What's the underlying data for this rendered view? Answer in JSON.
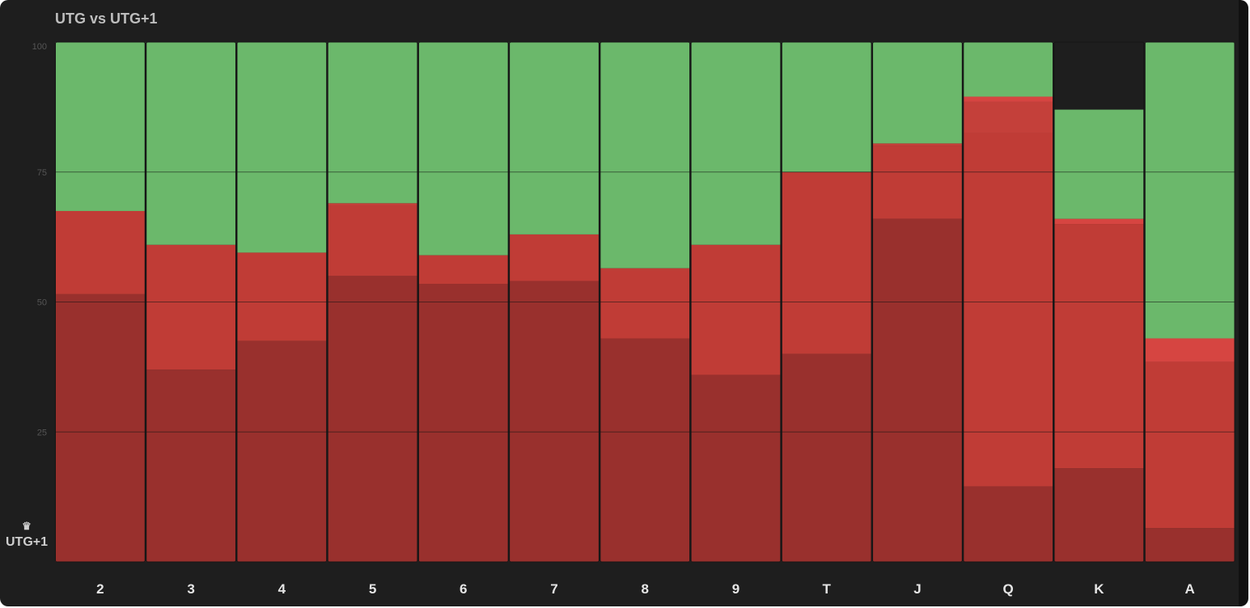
{
  "title": "UTG vs UTG+1",
  "player_label": "UTG+1",
  "icons": {
    "player_marker": "crown-icon"
  },
  "colors": {
    "background": "#1e1e1e",
    "fold": "#6bb86b",
    "call": "#c03c36",
    "raise_small": "#d64541",
    "raise_allin": "#99302d",
    "grid": "#2c2c2c"
  },
  "chart_data": {
    "type": "bar",
    "stacked": true,
    "categories": [
      "2",
      "3",
      "4",
      "5",
      "6",
      "7",
      "8",
      "9",
      "T",
      "J",
      "Q",
      "K",
      "A"
    ],
    "ylim": [
      0,
      100
    ],
    "yticks": [
      25,
      50,
      75,
      100
    ],
    "grid": true,
    "series": [
      {
        "values": [
          51.5,
          37,
          42.5,
          55,
          53.5,
          54,
          43,
          36,
          40,
          66,
          14.5,
          18,
          6.5
        ]
      },
      {
        "values": [
          16,
          24,
          17,
          13.5,
          5.5,
          9,
          13.5,
          25,
          35,
          14,
          68,
          47,
          32
        ]
      },
      {
        "values": [
          0,
          0,
          0,
          0.5,
          0,
          0,
          0,
          0,
          0,
          0.5,
          6,
          0,
          0
        ]
      },
      {
        "values": [
          0,
          0,
          0,
          0,
          0,
          0,
          0,
          0,
          0,
          0,
          1,
          1,
          4.5
        ]
      },
      {
        "values": [
          32.5,
          39,
          40.5,
          31,
          41,
          37,
          43.5,
          39,
          25,
          19.5,
          10.5,
          21,
          57
        ]
      }
    ]
  }
}
